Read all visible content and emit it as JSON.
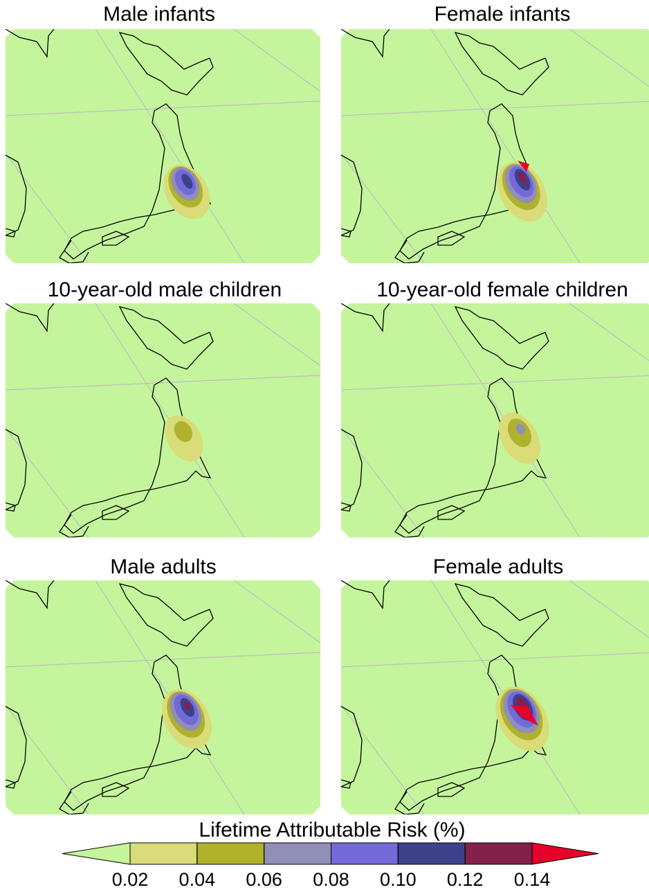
{
  "panels": [
    {
      "title": "Male infants"
    },
    {
      "title": "Female infants"
    },
    {
      "title": "10-year-old male children"
    },
    {
      "title": "10-year-old female children"
    },
    {
      "title": "Male adults"
    },
    {
      "title": "Female adults"
    }
  ],
  "colorbar": {
    "label": "Lifetime Attributable Risk (%)",
    "ticks": [
      0.02,
      0.04,
      0.06,
      0.08,
      {
        "value": 0.1,
        "label": "0.10"
      },
      0.12,
      0.14
    ],
    "colors": [
      "#d9dc78",
      "#b0b22b",
      "#8f8fb8",
      "#7469d9",
      "#3d418a",
      "#85204a"
    ],
    "under_color": "#c4f59c",
    "over_color": "#e6002a"
  }
}
